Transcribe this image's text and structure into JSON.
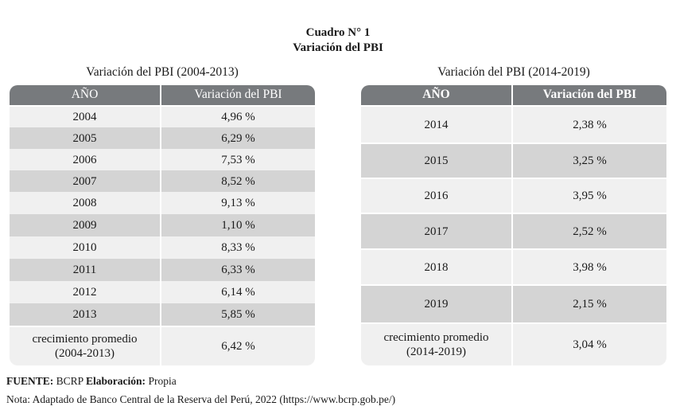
{
  "document": {
    "title_line1": "Cuadro N° 1",
    "title_line2": "Variación del PBI"
  },
  "left_table": {
    "caption": "Variación del PBI (2004-2013)",
    "headers": [
      "AÑO",
      "Variación del PBI"
    ],
    "rows": [
      [
        "2004",
        "4,96 %"
      ],
      [
        "2005",
        "6,29 %"
      ],
      [
        "2006",
        "7,53 %"
      ],
      [
        "2007",
        "8,52 %"
      ],
      [
        "2008",
        "9,13 %"
      ],
      [
        "2009",
        "1,10 %"
      ],
      [
        "2010",
        "8,33 %"
      ],
      [
        "2011",
        "6,33 %"
      ],
      [
        "2012",
        "6,14 %"
      ],
      [
        "2013",
        "5,85 %"
      ]
    ],
    "summary": {
      "label_line1": "crecimiento promedio",
      "label_line2": "(2004-2013)",
      "value": "6,42 %"
    }
  },
  "right_table": {
    "caption": "Variación del PBI (2014-2019)",
    "headers": [
      "AÑO",
      "Variación del PBI"
    ],
    "rows": [
      [
        "2014",
        "2,38 %"
      ],
      [
        "2015",
        "3,25 %"
      ],
      [
        "2016",
        "3,95 %"
      ],
      [
        "2017",
        "2,52 %"
      ],
      [
        "2018",
        "3,98 %"
      ],
      [
        "2019",
        "2,15 %"
      ]
    ],
    "summary": {
      "label_line1": "crecimiento promedio",
      "label_line2": "(2014-2019)",
      "value": "3,04 %"
    }
  },
  "footer": {
    "source_label": "FUENTE:",
    "source_value": "BCRP",
    "elab_label": "Elaboración:",
    "elab_value": "Propia",
    "note": "Nota: Adaptado de Banco Central de la Reserva del Perú, 2022 (https://www.bcrp.gob.pe/)"
  }
}
